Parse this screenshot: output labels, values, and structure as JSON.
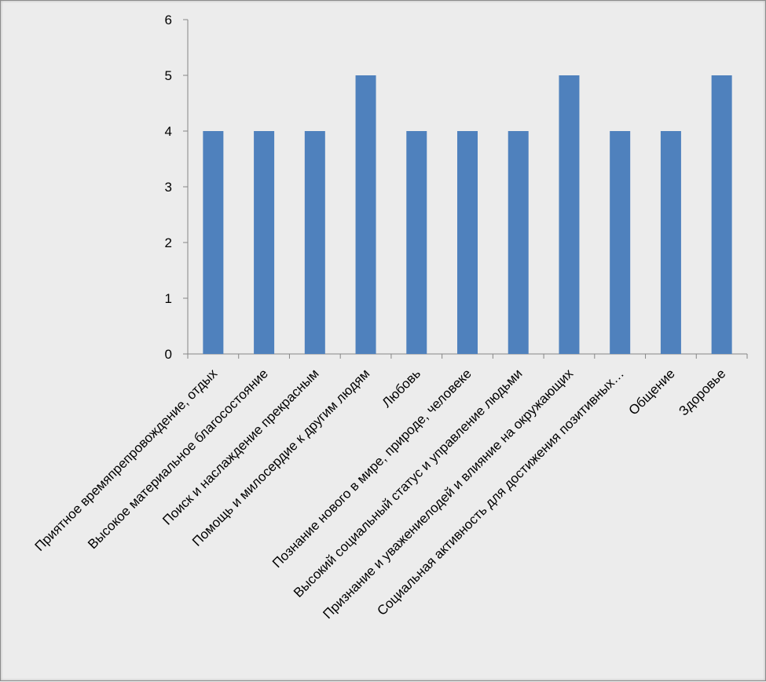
{
  "chart_data": {
    "type": "bar",
    "categories": [
      "Приятное времяпрепровождение, отдых",
      "Высокое материальное благосостояние",
      "Поиск и наслаждение прекрасным",
      "Помощь и милосердие к другим людям",
      "Любовь",
      "Познание нового в мире, природе, человеке",
      "Высокий социальный статус и управление людьми",
      "Признание и уважениелодей и влияние на окружающих",
      "Социальная активность для достижения позитивных…",
      "Общение",
      "Здоровье"
    ],
    "values": [
      4,
      4,
      4,
      5,
      4,
      4,
      4,
      5,
      4,
      4,
      5
    ],
    "ylim": [
      0,
      6
    ],
    "yticks": [
      0,
      1,
      2,
      3,
      4,
      5,
      6
    ],
    "grid": false,
    "legend": "none",
    "bar_color": "#4f81bd"
  }
}
